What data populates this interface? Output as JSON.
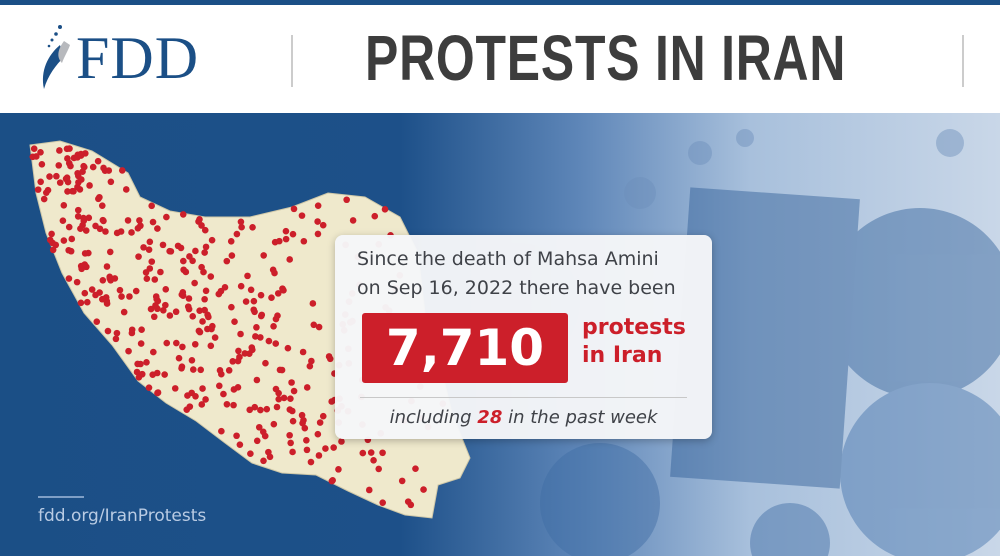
{
  "header": {
    "logo_text": "FDD",
    "title": "PROTESTS IN IRAN"
  },
  "card": {
    "intro_line1": "Since the death of Mahsa Amini",
    "intro_line2": "on Sep 16, 2022 there have been",
    "protest_count": "7,710",
    "count_label_line1": "protests",
    "count_label_line2": "in Iran",
    "week_prefix": "including",
    "week_count": "28",
    "week_suffix": "in the past week"
  },
  "footer": {
    "url": "fdd.org/IranProtests"
  },
  "colors": {
    "brand_blue": "#1b4f86",
    "protest_red": "#cc1f2a",
    "map_land": "#efe9cc",
    "title_gray": "#3d3d3d"
  },
  "map": {
    "region": "Iran",
    "marker": "protest-location-dot"
  }
}
